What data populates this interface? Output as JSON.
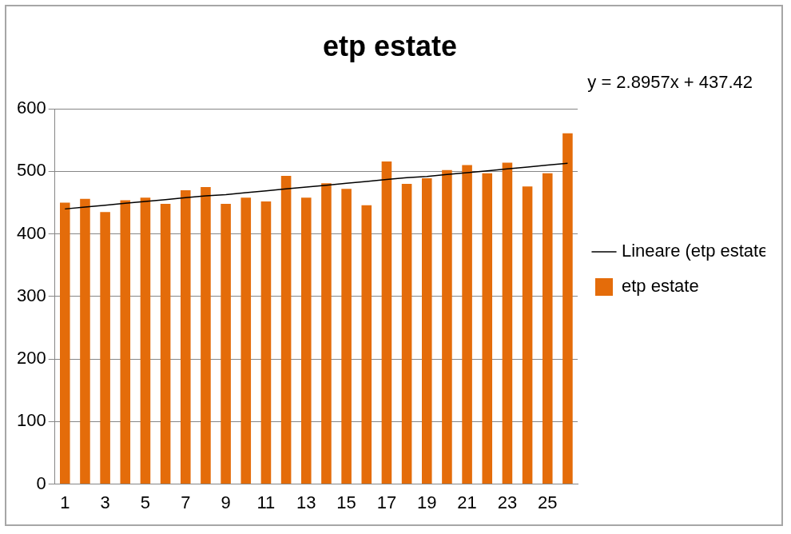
{
  "chart_data": {
    "type": "bar",
    "title": "etp estate",
    "categories": [
      "1",
      null,
      "3",
      null,
      "5",
      null,
      "7",
      null,
      "9",
      null,
      "11",
      null,
      "13",
      null,
      "15",
      null,
      "17",
      null,
      "19",
      null,
      "21",
      null,
      "23",
      null,
      "25",
      null
    ],
    "series": [
      {
        "name": "etp estate",
        "type": "bar",
        "color": "#e46c0a",
        "values": [
          450,
          456,
          435,
          454,
          458,
          448,
          470,
          475,
          448,
          458,
          452,
          493,
          458,
          481,
          472,
          446,
          516,
          480,
          489,
          502,
          510,
          497,
          514,
          476,
          497,
          561
        ]
      },
      {
        "name": "Lineare (etp estate)",
        "type": "line",
        "color": "#000000",
        "marker": "none",
        "values": [
          440,
          443,
          446,
          449,
          452,
          455,
          458,
          461,
          463,
          466,
          469,
          472,
          475,
          478,
          481,
          484,
          487,
          490,
          492,
          495,
          498,
          501,
          504,
          507,
          510,
          513
        ]
      }
    ],
    "annotations": [
      "y = 2.8957x + 437.42"
    ],
    "ylim": [
      0,
      600
    ],
    "yticks": [
      0,
      100,
      200,
      300,
      400,
      500,
      600
    ],
    "grid": true,
    "legend": "right"
  }
}
